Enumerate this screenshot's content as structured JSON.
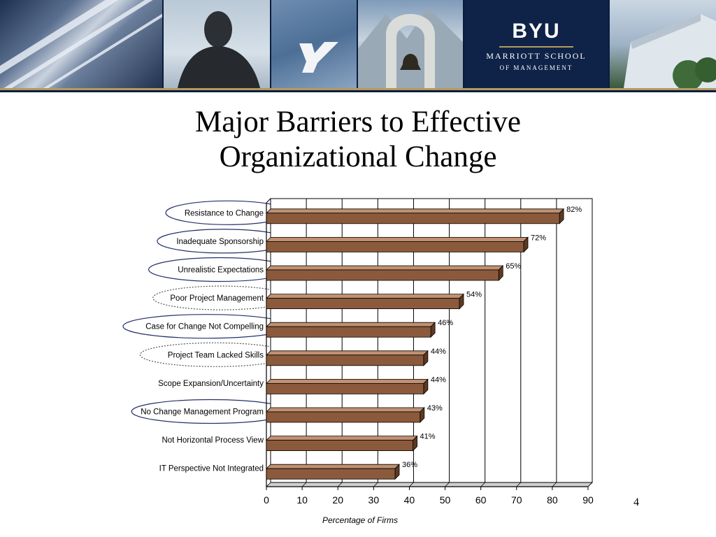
{
  "slide": {
    "title_line1": "Major Barriers to Effective",
    "title_line2": "Organizational Change",
    "page_number": "4"
  },
  "banner": {
    "logo_text": "BYU",
    "school_line1": "MARRIOTT SCHOOL",
    "school_line2": "OF MANAGEMENT",
    "gold_color": "#b39b5c",
    "navy_color": "#0b1d3f"
  },
  "chart_data": {
    "type": "bar",
    "orientation": "horizontal",
    "title": "",
    "xlabel": "Percentage of Firms",
    "ylabel": "",
    "xlim": [
      0,
      90
    ],
    "xticks": [
      0,
      10,
      20,
      30,
      40,
      50,
      60,
      70,
      80,
      90
    ],
    "grid": true,
    "bar_color": "#8b5a3c",
    "categories": [
      "Resistance to Change",
      "Inadequate Sponsorship",
      "Unrealistic Expectations",
      "Poor Project Management",
      "Case for Change Not Compelling",
      "Project Team Lacked Skills",
      "Scope Expansion/Uncertainty",
      "No Change Management Program",
      "Not Horizontal Process View",
      "IT Perspective Not Integrated"
    ],
    "values": [
      82,
      72,
      65,
      54,
      46,
      44,
      44,
      43,
      41,
      36
    ],
    "data_labels": [
      "82%",
      "72%",
      "65%",
      "54%",
      "46%",
      "44%",
      "44%",
      "43%",
      "41%",
      "36%"
    ],
    "highlights": [
      "solid",
      "solid",
      "solid",
      "dotted",
      "solid",
      "dotted",
      "none",
      "solid",
      "none",
      "none"
    ]
  }
}
